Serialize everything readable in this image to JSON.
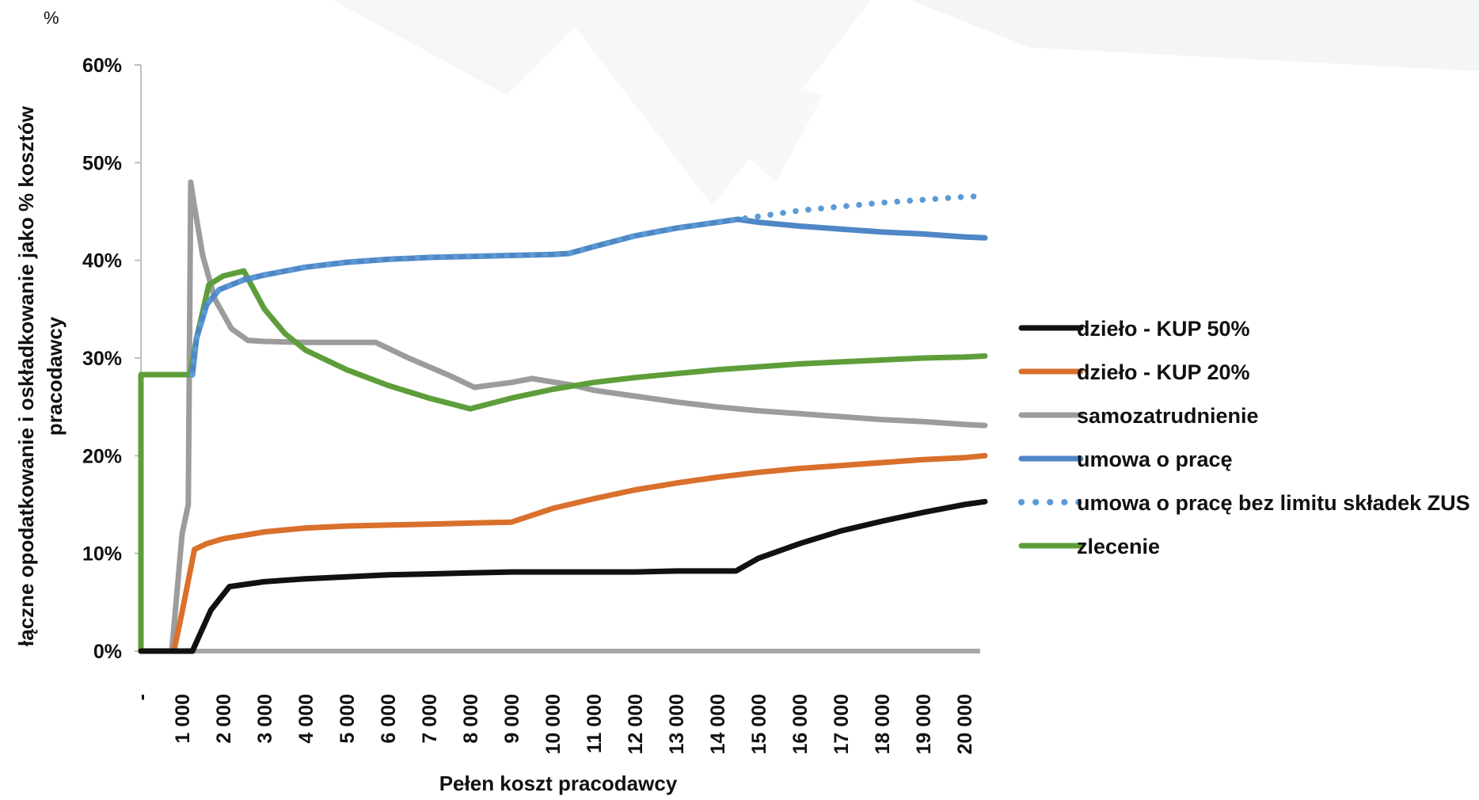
{
  "chart_data": {
    "type": "line",
    "unit_label": "%",
    "title": "",
    "xlabel": "Pełen koszt pracodawcy",
    "ylabel": "łączne opodatkowanie i oskładkowanie jako % kosztów pracodawcy",
    "ylim": [
      0,
      60
    ],
    "xlim": [
      0,
      20500
    ],
    "y_ticks": [
      {
        "value": 0,
        "label": "0%"
      },
      {
        "value": 10,
        "label": "10%"
      },
      {
        "value": 20,
        "label": "20%"
      },
      {
        "value": 30,
        "label": "30%"
      },
      {
        "value": 40,
        "label": "40%"
      },
      {
        "value": 50,
        "label": "50%"
      },
      {
        "value": 60,
        "label": "60%"
      }
    ],
    "x_ticks": [
      {
        "value": 0,
        "label": "-"
      },
      {
        "value": 1000,
        "label": "1 000"
      },
      {
        "value": 2000,
        "label": "2 000"
      },
      {
        "value": 3000,
        "label": "3 000"
      },
      {
        "value": 4000,
        "label": "4 000"
      },
      {
        "value": 5000,
        "label": "5 000"
      },
      {
        "value": 6000,
        "label": "6 000"
      },
      {
        "value": 7000,
        "label": "7 000"
      },
      {
        "value": 8000,
        "label": "8 000"
      },
      {
        "value": 9000,
        "label": "9 000"
      },
      {
        "value": 10000,
        "label": "10 000"
      },
      {
        "value": 11000,
        "label": "11 000"
      },
      {
        "value": 12000,
        "label": "12 000"
      },
      {
        "value": 13000,
        "label": "13 000"
      },
      {
        "value": 14000,
        "label": "14 000"
      },
      {
        "value": 15000,
        "label": "15 000"
      },
      {
        "value": 16000,
        "label": "16 000"
      },
      {
        "value": 17000,
        "label": "17 000"
      },
      {
        "value": 18000,
        "label": "18 000"
      },
      {
        "value": 19000,
        "label": "19 000"
      },
      {
        "value": 20000,
        "label": "20 000"
      }
    ],
    "grid": false,
    "legend_position": "right",
    "series": [
      {
        "name": "dzieło - KUP 50%",
        "color": "#111111",
        "style": "solid",
        "x": [
          0,
          1000,
          1250,
          1700,
          2150,
          3000,
          4000,
          5000,
          6000,
          7000,
          8000,
          9000,
          10000,
          11000,
          12000,
          13000,
          14000,
          14450,
          15000,
          16000,
          17000,
          18000,
          19000,
          20000,
          20500
        ],
        "y": [
          0,
          0,
          0,
          4.2,
          6.6,
          7.1,
          7.4,
          7.6,
          7.8,
          7.9,
          8.0,
          8.1,
          8.1,
          8.1,
          8.1,
          8.2,
          8.2,
          8.2,
          9.5,
          11.0,
          12.3,
          13.3,
          14.2,
          15.0,
          15.3
        ]
      },
      {
        "name": "dzieło - KUP 20%",
        "color": "#D9702C",
        "style": "solid",
        "x": [
          0,
          800,
          1000,
          1300,
          1600,
          2000,
          3000,
          4000,
          5000,
          6000,
          7000,
          8000,
          9000,
          10000,
          11000,
          12000,
          13000,
          14000,
          15000,
          16000,
          17000,
          18000,
          19000,
          20000,
          20500
        ],
        "y": [
          0,
          0,
          4.0,
          10.4,
          11.0,
          11.5,
          12.2,
          12.6,
          12.8,
          12.9,
          13.0,
          13.1,
          13.2,
          14.6,
          15.6,
          16.5,
          17.2,
          17.8,
          18.3,
          18.7,
          19.0,
          19.3,
          19.6,
          19.8,
          20.0
        ]
      },
      {
        "name": "samozatrudnienie",
        "color": "#9C9C9C",
        "style": "solid",
        "x": [
          0,
          650,
          750,
          1000,
          1150,
          1210,
          1280,
          1500,
          1800,
          2200,
          2600,
          3000,
          4000,
          5000,
          5700,
          6500,
          7500,
          8100,
          9000,
          9500,
          10500,
          11000,
          12000,
          13000,
          14000,
          15000,
          16000,
          17000,
          18000,
          19000,
          20000,
          20500
        ],
        "y": [
          0,
          0,
          0,
          12.0,
          15.0,
          48.0,
          46.0,
          40.5,
          36.0,
          33.0,
          31.8,
          31.7,
          31.6,
          31.6,
          31.6,
          30.0,
          28.2,
          27.0,
          27.5,
          27.9,
          27.2,
          26.7,
          26.1,
          25.5,
          25.0,
          24.6,
          24.3,
          24.0,
          23.7,
          23.5,
          23.2,
          23.1
        ]
      },
      {
        "name": "umowa o pracę",
        "color": "#4F86C6",
        "style": "solid",
        "x": [
          1250,
          1350,
          1600,
          1900,
          2500,
          3000,
          4000,
          5000,
          6000,
          7000,
          8000,
          9000,
          10000,
          10400,
          11000,
          12000,
          13000,
          14000,
          14500,
          15000,
          16000,
          17000,
          18000,
          19000,
          20000,
          20500
        ],
        "y": [
          28.3,
          32.0,
          35.5,
          37.0,
          38.0,
          38.5,
          39.3,
          39.8,
          40.1,
          40.3,
          40.4,
          40.5,
          40.6,
          40.7,
          41.4,
          42.5,
          43.3,
          43.9,
          44.2,
          43.9,
          43.5,
          43.2,
          42.9,
          42.7,
          42.4,
          42.3
        ]
      },
      {
        "name": "umowa o pracę bez limitu składek ZUS",
        "color": "#5B9BD5",
        "style": "dotted",
        "x": [
          1250,
          1350,
          1600,
          1900,
          2500,
          3000,
          4000,
          5000,
          6000,
          7000,
          8000,
          9000,
          10000,
          10400,
          11000,
          12000,
          13000,
          14000,
          14500,
          15000,
          16000,
          17000,
          18000,
          19000,
          20000,
          20500
        ],
        "y": [
          28.3,
          32.0,
          35.5,
          37.0,
          38.0,
          38.5,
          39.3,
          39.8,
          40.1,
          40.3,
          40.4,
          40.5,
          40.6,
          40.7,
          41.4,
          42.5,
          43.3,
          43.9,
          44.2,
          44.5,
          45.1,
          45.5,
          45.9,
          46.2,
          46.5,
          46.6
        ]
      },
      {
        "name": "zlecenie",
        "color": "#5E9E3A",
        "style": "solid",
        "x": [
          0,
          0,
          1200,
          1350,
          1650,
          2000,
          2500,
          3000,
          3500,
          4000,
          5000,
          6000,
          7000,
          8000,
          9000,
          10000,
          11000,
          12000,
          13000,
          14000,
          15000,
          16000,
          17000,
          18000,
          19000,
          20000,
          20500
        ],
        "y": [
          0,
          28.3,
          28.3,
          32.0,
          37.5,
          38.4,
          38.9,
          35.0,
          32.5,
          30.8,
          28.8,
          27.2,
          25.9,
          24.8,
          25.9,
          26.8,
          27.5,
          28.0,
          28.4,
          28.8,
          29.1,
          29.4,
          29.6,
          29.8,
          30.0,
          30.1,
          30.2
        ]
      }
    ]
  }
}
